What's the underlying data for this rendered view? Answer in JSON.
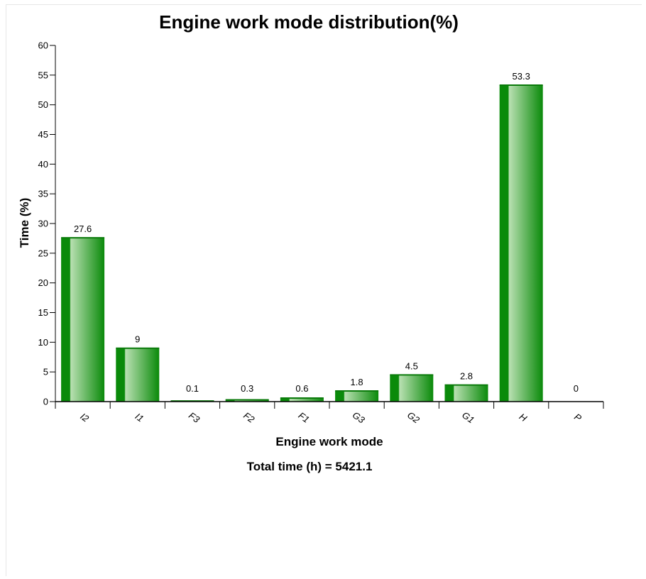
{
  "chart_data": {
    "type": "bar",
    "title": "Engine work mode distribution(%)",
    "xlabel": "Engine work mode",
    "ylabel": "Time (%)",
    "footer": "Total time (h) = 5421.1",
    "categories": [
      "I2",
      "I1",
      "F3",
      "F2",
      "F1",
      "G3",
      "G2",
      "G1",
      "H",
      "P"
    ],
    "values": [
      27.6,
      9,
      0.1,
      0.3,
      0.6,
      1.8,
      4.5,
      2.8,
      53.3,
      0
    ],
    "data_labels": [
      "27.6",
      "9",
      "0.1",
      "0.3",
      "0.6",
      "1.8",
      "4.5",
      "2.8",
      "53.3",
      "0"
    ],
    "ylim": [
      0,
      60
    ],
    "yticks": [
      "0",
      "5",
      "10",
      "15",
      "20",
      "25",
      "30",
      "35",
      "40",
      "45",
      "50",
      "55",
      "60"
    ],
    "grid": false,
    "legend": "none",
    "colors": {
      "bar_dark": "#0a8a0a",
      "bar_light": "#b9e0b2"
    }
  }
}
